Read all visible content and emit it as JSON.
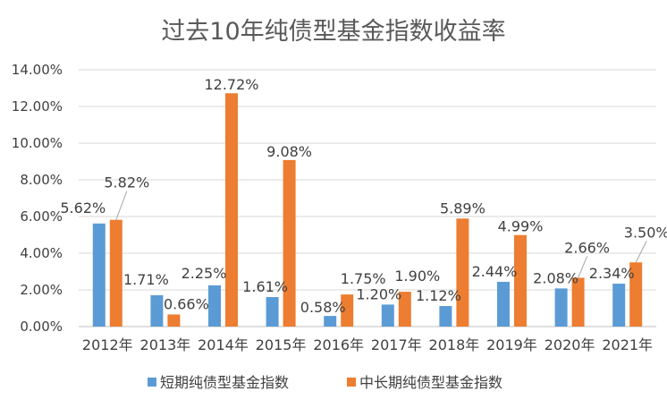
{
  "chart_data": {
    "type": "bar",
    "title": "过去10年纯债型基金指数收益率",
    "xlabel": "",
    "ylabel": "",
    "categories": [
      "2012年",
      "2013年",
      "2014年",
      "2015年",
      "2016年",
      "2017年",
      "2018年",
      "2019年",
      "2020年",
      "2021年"
    ],
    "series": [
      {
        "name": "短期纯债型基金指数",
        "color": "#5B9BD5",
        "values": [
          5.62,
          1.71,
          2.25,
          1.61,
          0.58,
          1.2,
          1.12,
          2.44,
          2.08,
          2.34
        ],
        "labels": [
          "5.62%",
          "1.71%",
          "2.25%",
          "1.61%",
          "0.58%",
          "1.20%",
          "1.12%",
          "2.44%",
          "2.08%",
          "2.34%"
        ]
      },
      {
        "name": "中长期纯债型基金指数",
        "color": "#ED7D31",
        "values": [
          5.82,
          0.66,
          12.72,
          9.08,
          1.75,
          1.9,
          5.89,
          4.99,
          2.66,
          3.5
        ],
        "labels": [
          "5.82%",
          "0.66%",
          "12.72%",
          "9.08%",
          "1.75%",
          "1.90%",
          "5.89%",
          "4.99%",
          "2.66%",
          "3.50%"
        ]
      }
    ],
    "ylim": [
      0,
      14
    ],
    "yticks": [
      0,
      2,
      4,
      6,
      8,
      10,
      12,
      14
    ],
    "ytick_labels": [
      "0.00%",
      "2.00%",
      "4.00%",
      "6.00%",
      "8.00%",
      "10.00%",
      "12.00%",
      "14.00%"
    ],
    "grid": true,
    "legend": "bottom"
  }
}
